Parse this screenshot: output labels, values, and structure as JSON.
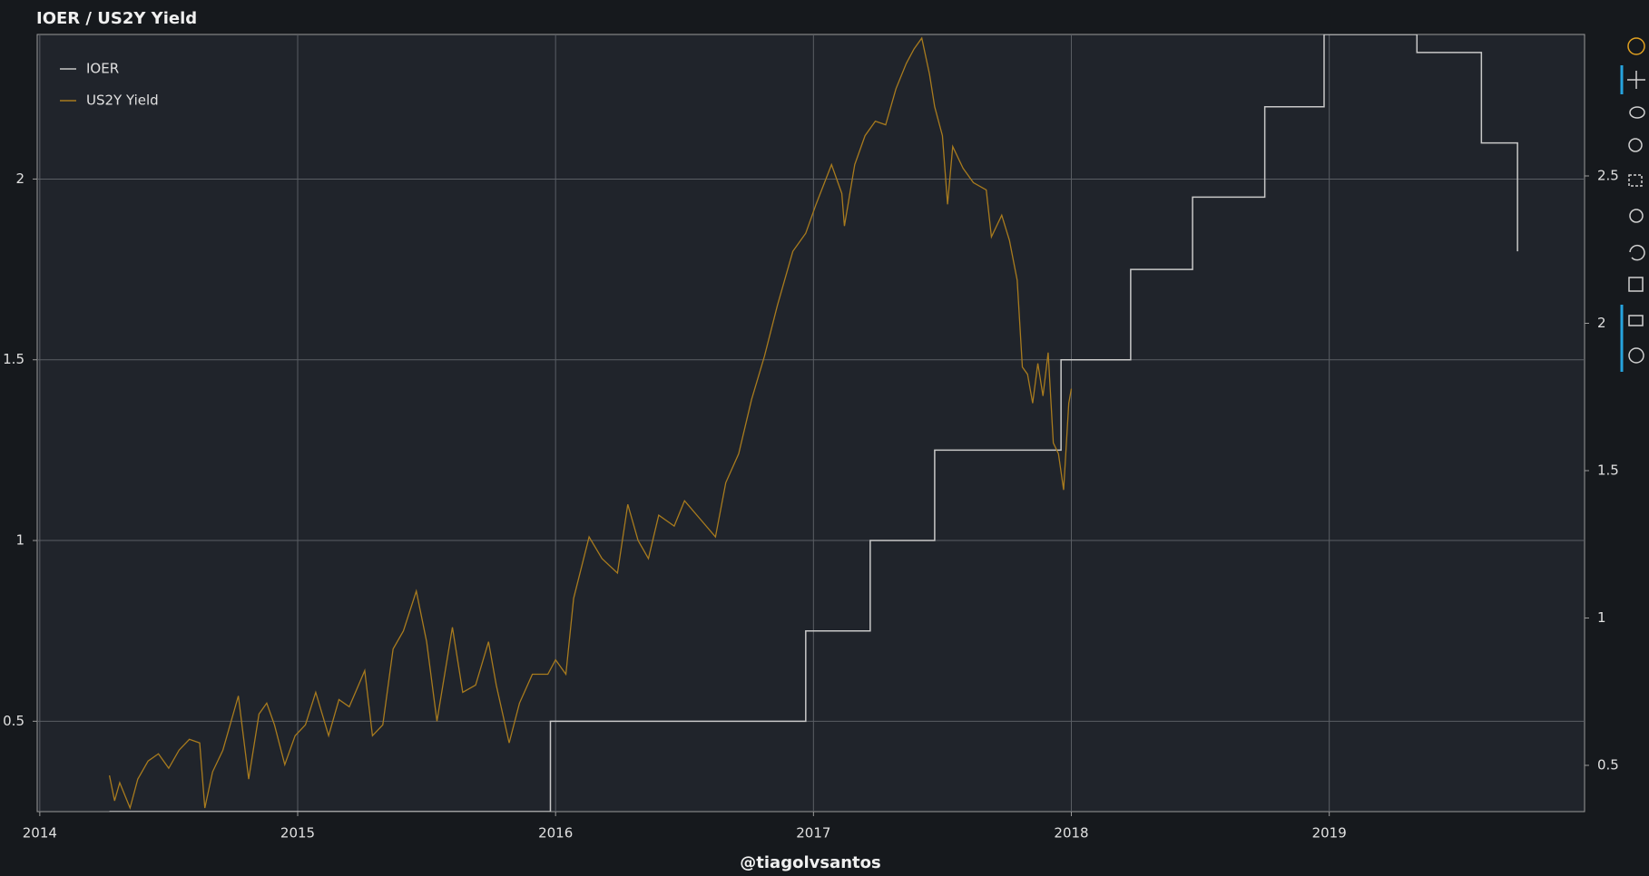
{
  "chart_data": {
    "type": "line",
    "title": "IOER / US2Y Yield",
    "x_label": "@tiagolvsantos",
    "xlim": [
      2013.99,
      2019.99
    ],
    "xticks": [
      2014,
      2015,
      2016,
      2017,
      2018,
      2019
    ],
    "ylim": [
      0.25,
      2.4
    ],
    "yticks": [
      0.5,
      1,
      1.5,
      2
    ],
    "y2lim": [
      0.343,
      2.98
    ],
    "y2ticks": [
      0.5,
      1,
      1.5,
      2,
      2.5
    ],
    "grid": true,
    "legend": "top-left",
    "series": [
      {
        "name": "IOER",
        "color": "#c8c8c8",
        "step": "after",
        "x": [
          2014.27,
          2015.98,
          2016.97,
          2017.22,
          2017.47,
          2017.96,
          2018.23,
          2018.47,
          2018.75,
          2018.98,
          2019.34,
          2019.59,
          2019.73
        ],
        "values": [
          0.25,
          0.5,
          0.75,
          1.0,
          1.25,
          1.5,
          1.75,
          1.95,
          2.2,
          2.4,
          2.35,
          2.1,
          1.8
        ]
      },
      {
        "name": "US2Y Yield",
        "color": "#a87b1e",
        "x": [
          2014.27,
          2014.29,
          2014.31,
          2014.35,
          2014.38,
          2014.42,
          2014.46,
          2014.5,
          2014.54,
          2014.58,
          2014.62,
          2014.64,
          2014.67,
          2014.71,
          2014.75,
          2014.77,
          2014.81,
          2014.85,
          2014.88,
          2014.91,
          2014.95,
          2014.99,
          2015.03,
          2015.07,
          2015.12,
          2015.16,
          2015.2,
          2015.26,
          2015.29,
          2015.33,
          2015.37,
          2015.41,
          2015.46,
          2015.5,
          2015.54,
          2015.57,
          2015.6,
          2015.64,
          2015.69,
          2015.74,
          2015.77,
          2015.82,
          2015.86,
          2015.91,
          2015.97,
          2016.0,
          2016.04,
          2016.07,
          2016.13,
          2016.18,
          2016.24,
          2016.28,
          2016.32,
          2016.36,
          2016.4,
          2016.46,
          2016.5,
          2016.56,
          2016.62,
          2016.66,
          2016.71,
          2016.76,
          2016.81,
          2016.86,
          2016.92,
          2016.97,
          2017.01,
          2017.07,
          2017.11,
          2017.12,
          2017.16,
          2017.2,
          2017.24,
          2017.28,
          2017.32,
          2017.36,
          2017.39,
          2017.42,
          2017.45,
          2017.47,
          2017.5,
          2017.52,
          2017.54,
          2017.58,
          2017.62,
          2017.67,
          2017.69,
          2017.73,
          2017.76,
          2017.79,
          2017.81,
          2017.83,
          2017.85,
          2017.87,
          2017.89,
          2017.91,
          2017.93,
          2017.95,
          2017.97,
          2017.99,
          2018.0
        ],
        "values": [
          0.35,
          0.28,
          0.33,
          0.26,
          0.34,
          0.39,
          0.41,
          0.37,
          0.42,
          0.45,
          0.44,
          0.26,
          0.36,
          0.42,
          0.52,
          0.57,
          0.34,
          0.52,
          0.55,
          0.49,
          0.38,
          0.46,
          0.49,
          0.58,
          0.46,
          0.56,
          0.54,
          0.64,
          0.46,
          0.49,
          0.7,
          0.75,
          0.86,
          0.72,
          0.5,
          0.63,
          0.76,
          0.58,
          0.6,
          0.72,
          0.6,
          0.44,
          0.55,
          0.63,
          0.63,
          0.67,
          0.63,
          0.84,
          1.01,
          0.95,
          0.91,
          1.1,
          1.0,
          0.95,
          1.07,
          1.04,
          1.11,
          1.06,
          1.01,
          1.16,
          1.24,
          1.39,
          1.51,
          1.65,
          1.8,
          1.85,
          1.93,
          2.04,
          1.96,
          1.87,
          2.04,
          2.12,
          2.16,
          2.15,
          2.25,
          2.32,
          2.36,
          2.39,
          2.29,
          2.2,
          2.12,
          1.93,
          2.09,
          2.03,
          1.99,
          1.97,
          1.84,
          1.9,
          1.83,
          1.72,
          1.48,
          1.46,
          1.38,
          1.49,
          1.4,
          1.52,
          1.27,
          1.24,
          1.14,
          1.38,
          1.42
        ]
      }
    ]
  }
}
